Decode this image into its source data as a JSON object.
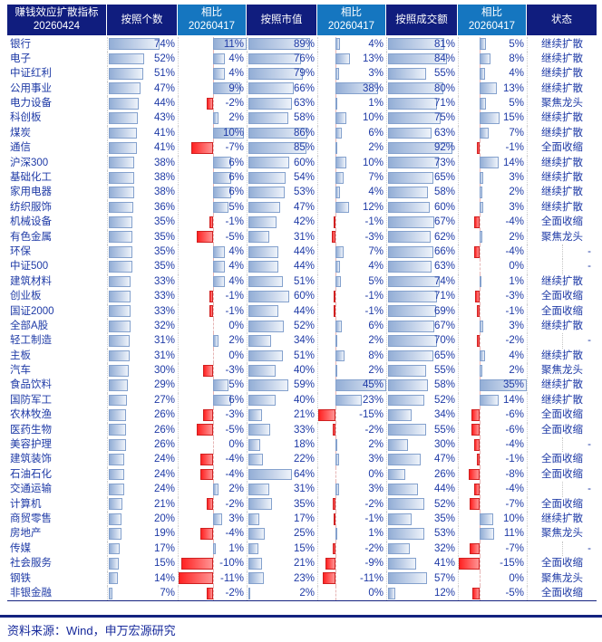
{
  "header": {
    "cells": [
      {
        "l1": "赚钱效应扩散指标",
        "l2": "20260424"
      },
      {
        "l1": "按照个数",
        "l2": ""
      },
      {
        "l1": "相比",
        "l2": "20260417"
      },
      {
        "l1": "按照市值",
        "l2": ""
      },
      {
        "l1": "相比",
        "l2": "20260417"
      },
      {
        "l1": "按照成交额",
        "l2": ""
      },
      {
        "l1": "相比",
        "l2": "20260417"
      },
      {
        "l1": "状态",
        "l2": ""
      }
    ]
  },
  "chart_data": {
    "type": "table",
    "title": "赚钱效应扩散指标 20260424",
    "date_current": "20260424",
    "date_prev": "20260417",
    "column_headers": [
      "赚钱效应扩散指标 20260424",
      "按照个数",
      "相比 20260417",
      "按照市值",
      "相比 20260417",
      "按照成交额",
      "相比 20260417",
      "状态"
    ],
    "unit": "%",
    "rows": [
      {
        "name": "银行",
        "count": 74,
        "count_chg": 11,
        "mcap": 89,
        "mcap_chg": 4,
        "turnover": 81,
        "turnover_chg": 5,
        "status": "继续扩散"
      },
      {
        "name": "电子",
        "count": 52,
        "count_chg": 4,
        "mcap": 76,
        "mcap_chg": 13,
        "turnover": 84,
        "turnover_chg": 8,
        "status": "继续扩散"
      },
      {
        "name": "中证红利",
        "count": 51,
        "count_chg": 4,
        "mcap": 79,
        "mcap_chg": 3,
        "turnover": 55,
        "turnover_chg": 4,
        "status": "继续扩散"
      },
      {
        "name": "公用事业",
        "count": 47,
        "count_chg": 9,
        "mcap": 66,
        "mcap_chg": 38,
        "turnover": 80,
        "turnover_chg": 13,
        "status": "继续扩散"
      },
      {
        "name": "电力设备",
        "count": 44,
        "count_chg": -2,
        "mcap": 63,
        "mcap_chg": 1,
        "turnover": 71,
        "turnover_chg": 5,
        "status": "聚焦龙头"
      },
      {
        "name": "科创板",
        "count": 43,
        "count_chg": 2,
        "mcap": 58,
        "mcap_chg": 10,
        "turnover": 75,
        "turnover_chg": 15,
        "status": "继续扩散"
      },
      {
        "name": "煤炭",
        "count": 41,
        "count_chg": 10,
        "mcap": 86,
        "mcap_chg": 6,
        "turnover": 63,
        "turnover_chg": 7,
        "status": "继续扩散"
      },
      {
        "name": "通信",
        "count": 41,
        "count_chg": -7,
        "mcap": 85,
        "mcap_chg": 2,
        "turnover": 92,
        "turnover_chg": -1,
        "status": "全面收缩"
      },
      {
        "name": "沪深300",
        "count": 38,
        "count_chg": 6,
        "mcap": 60,
        "mcap_chg": 10,
        "turnover": 73,
        "turnover_chg": 14,
        "status": "继续扩散"
      },
      {
        "name": "基础化工",
        "count": 38,
        "count_chg": 6,
        "mcap": 54,
        "mcap_chg": 7,
        "turnover": 65,
        "turnover_chg": 3,
        "status": "继续扩散"
      },
      {
        "name": "家用电器",
        "count": 38,
        "count_chg": 6,
        "mcap": 53,
        "mcap_chg": 4,
        "turnover": 58,
        "turnover_chg": 2,
        "status": "继续扩散"
      },
      {
        "name": "纺织服饰",
        "count": 36,
        "count_chg": 5,
        "mcap": 47,
        "mcap_chg": 12,
        "turnover": 60,
        "turnover_chg": 3,
        "status": "继续扩散"
      },
      {
        "name": "机械设备",
        "count": 35,
        "count_chg": -1,
        "mcap": 42,
        "mcap_chg": -1,
        "turnover": 67,
        "turnover_chg": -4,
        "status": "全面收缩"
      },
      {
        "name": "有色金属",
        "count": 35,
        "count_chg": -5,
        "mcap": 31,
        "mcap_chg": -3,
        "turnover": 62,
        "turnover_chg": 2,
        "status": "聚焦龙头"
      },
      {
        "name": "环保",
        "count": 35,
        "count_chg": 4,
        "mcap": 44,
        "mcap_chg": 7,
        "turnover": 66,
        "turnover_chg": -4,
        "status": "-"
      },
      {
        "name": "中证500",
        "count": 35,
        "count_chg": 4,
        "mcap": 44,
        "mcap_chg": 4,
        "turnover": 63,
        "turnover_chg": 0,
        "status": "-"
      },
      {
        "name": "建筑材料",
        "count": 33,
        "count_chg": 4,
        "mcap": 51,
        "mcap_chg": 5,
        "turnover": 74,
        "turnover_chg": 1,
        "status": "继续扩散"
      },
      {
        "name": "创业板",
        "count": 33,
        "count_chg": -1,
        "mcap": 60,
        "mcap_chg": -1,
        "turnover": 71,
        "turnover_chg": -3,
        "status": "全面收缩"
      },
      {
        "name": "国证2000",
        "count": 33,
        "count_chg": -1,
        "mcap": 44,
        "mcap_chg": -1,
        "turnover": 69,
        "turnover_chg": -1,
        "status": "全面收缩"
      },
      {
        "name": "全部A股",
        "count": 32,
        "count_chg": 0,
        "mcap": 52,
        "mcap_chg": 6,
        "turnover": 67,
        "turnover_chg": 3,
        "status": "继续扩散"
      },
      {
        "name": "轻工制造",
        "count": 31,
        "count_chg": 2,
        "mcap": 34,
        "mcap_chg": 2,
        "turnover": 70,
        "turnover_chg": -2,
        "status": "-"
      },
      {
        "name": "主板",
        "count": 31,
        "count_chg": 0,
        "mcap": 51,
        "mcap_chg": 8,
        "turnover": 65,
        "turnover_chg": 4,
        "status": "继续扩散"
      },
      {
        "name": "汽车",
        "count": 30,
        "count_chg": -3,
        "mcap": 40,
        "mcap_chg": 2,
        "turnover": 55,
        "turnover_chg": 2,
        "status": "聚焦龙头"
      },
      {
        "name": "食品饮料",
        "count": 29,
        "count_chg": 5,
        "mcap": 59,
        "mcap_chg": 45,
        "turnover": 58,
        "turnover_chg": 35,
        "status": "继续扩散"
      },
      {
        "name": "国防军工",
        "count": 27,
        "count_chg": 6,
        "mcap": 40,
        "mcap_chg": 23,
        "turnover": 52,
        "turnover_chg": 14,
        "status": "继续扩散"
      },
      {
        "name": "农林牧渔",
        "count": 26,
        "count_chg": -3,
        "mcap": 21,
        "mcap_chg": -15,
        "turnover": 34,
        "turnover_chg": -6,
        "status": "全面收缩"
      },
      {
        "name": "医药生物",
        "count": 26,
        "count_chg": -5,
        "mcap": 33,
        "mcap_chg": -2,
        "turnover": 55,
        "turnover_chg": -6,
        "status": "全面收缩"
      },
      {
        "name": "美容护理",
        "count": 26,
        "count_chg": 0,
        "mcap": 18,
        "mcap_chg": 2,
        "turnover": 30,
        "turnover_chg": -4,
        "status": "-"
      },
      {
        "name": "建筑装饰",
        "count": 24,
        "count_chg": -4,
        "mcap": 22,
        "mcap_chg": 3,
        "turnover": 47,
        "turnover_chg": -1,
        "status": "全面收缩"
      },
      {
        "name": "石油石化",
        "count": 24,
        "count_chg": -4,
        "mcap": 64,
        "mcap_chg": 0,
        "turnover": 26,
        "turnover_chg": -8,
        "status": "全面收缩"
      },
      {
        "name": "交通运输",
        "count": 24,
        "count_chg": 2,
        "mcap": 31,
        "mcap_chg": 3,
        "turnover": 44,
        "turnover_chg": -4,
        "status": "-"
      },
      {
        "name": "计算机",
        "count": 21,
        "count_chg": -2,
        "mcap": 35,
        "mcap_chg": -2,
        "turnover": 52,
        "turnover_chg": -7,
        "status": "全面收缩"
      },
      {
        "name": "商贸零售",
        "count": 20,
        "count_chg": 3,
        "mcap": 17,
        "mcap_chg": -1,
        "turnover": 35,
        "turnover_chg": 10,
        "status": "继续扩散"
      },
      {
        "name": "房地产",
        "count": 19,
        "count_chg": -4,
        "mcap": 25,
        "mcap_chg": 1,
        "turnover": 53,
        "turnover_chg": 11,
        "status": "聚焦龙头"
      },
      {
        "name": "传媒",
        "count": 17,
        "count_chg": 1,
        "mcap": 15,
        "mcap_chg": -2,
        "turnover": 32,
        "turnover_chg": -7,
        "status": "-"
      },
      {
        "name": "社会服务",
        "count": 15,
        "count_chg": -10,
        "mcap": 21,
        "mcap_chg": -9,
        "turnover": 41,
        "turnover_chg": -15,
        "status": "全面收缩"
      },
      {
        "name": "钢铁",
        "count": 14,
        "count_chg": -11,
        "mcap": 23,
        "mcap_chg": -11,
        "turnover": 57,
        "turnover_chg": 0,
        "status": "聚焦龙头"
      },
      {
        "name": "非银金融",
        "count": 7,
        "count_chg": -2,
        "mcap": 2,
        "mcap_chg": 0,
        "turnover": 12,
        "turnover_chg": -5,
        "status": "全面收缩"
      }
    ]
  },
  "footer": {
    "source": "资料来源：Wind，申万宏源研究"
  },
  "colors": {
    "header_bg": "#101d7e",
    "header_cmp_bg": "#1576c0",
    "text": "#1e3aa6",
    "positive_bar": "#93aed6",
    "negative_bar": "#ff2222",
    "rule": "#14227f"
  }
}
